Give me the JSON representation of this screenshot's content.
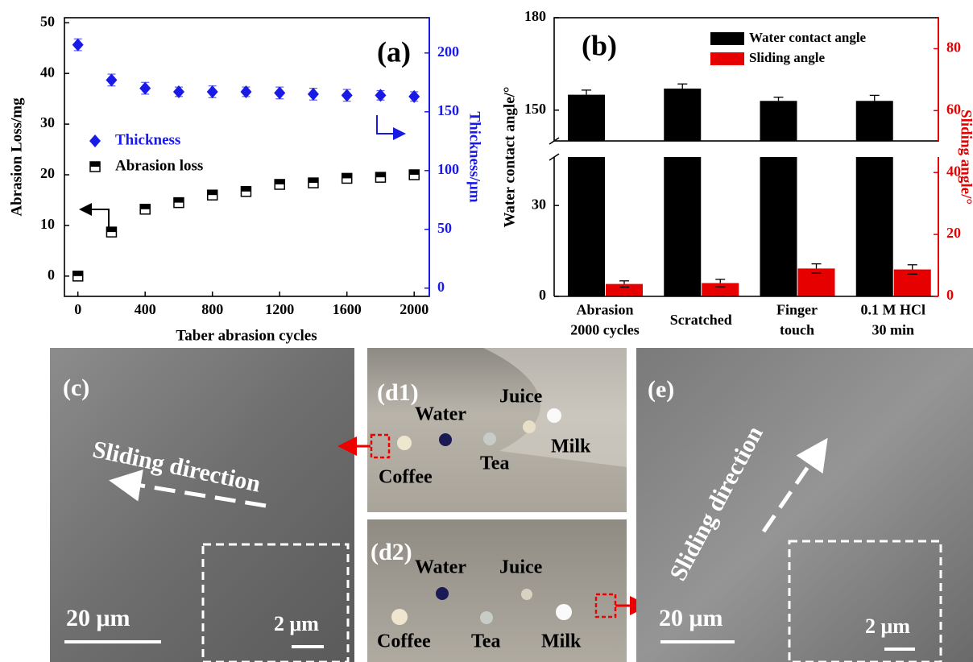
{
  "chart_data": [
    {
      "type": "scatter",
      "title": "(a)",
      "x": [
        0,
        200,
        400,
        600,
        800,
        1000,
        1200,
        1400,
        1600,
        1800,
        2000
      ],
      "series": [
        {
          "name": "Thickness",
          "color": "#1a1ae6",
          "marker": "diamond",
          "axis": "y2",
          "values": [
            207,
            177,
            170,
            167,
            167,
            167,
            166,
            165,
            164,
            164,
            163
          ],
          "errors": [
            5,
            5,
            5,
            4,
            5,
            4,
            5,
            5,
            5,
            4,
            4
          ]
        },
        {
          "name": "Abrasion loss",
          "color": "#000000",
          "marker": "half-square",
          "values": [
            0,
            8.7,
            13.2,
            14.5,
            16,
            16.7,
            18.1,
            18.4,
            19.3,
            19.5,
            20
          ],
          "errors": [
            0.3,
            0.4,
            0.4,
            0.4,
            0.4,
            0.4,
            0.4,
            0.4,
            0.4,
            0.4,
            0.4
          ]
        }
      ],
      "xlabel": "Taber abrasion cycles",
      "ylabel": "Abrasion Loss/mg",
      "y2label": "Thickness/μm",
      "xlim": [
        -80,
        2090
      ],
      "xticks": [
        0,
        400,
        800,
        1200,
        1600,
        2000
      ],
      "ylim": [
        -4,
        51
      ],
      "yticks": [
        0,
        10,
        20,
        30,
        40,
        50
      ],
      "y2lim": [
        -7,
        230
      ],
      "y2ticks": [
        0,
        50,
        100,
        150,
        200
      ],
      "y2color": "#1a1ae6"
    },
    {
      "type": "bar",
      "title": "(b)",
      "categories": [
        [
          "Abrasion",
          "2000 cycles"
        ],
        [
          "Scratched"
        ],
        [
          "Finger",
          "touch"
        ],
        [
          "0.1 M HCl",
          "30 min"
        ]
      ],
      "series": [
        {
          "name": "Water contact angle",
          "color": "#000000",
          "values": [
            155,
            157,
            153,
            153
          ],
          "errors": [
            1.5,
            1.5,
            1.2,
            1.8
          ]
        },
        {
          "name": "Sliding angle",
          "color": "#e60000",
          "axis": "y2",
          "values": [
            4,
            4.3,
            9,
            8.7
          ],
          "errors": [
            1,
            1.2,
            1.5,
            1.5
          ]
        }
      ],
      "ylabel": "Water contact angle/°",
      "y2label": "Sliding angle/°",
      "ylim": [
        0,
        180
      ],
      "ybreak": [
        46,
        140
      ],
      "yticks": [
        0,
        30,
        150,
        180
      ],
      "y2lim": [
        0,
        90
      ],
      "y2ticks": [
        0,
        20,
        40,
        60,
        80
      ],
      "y2color": "#e60000"
    }
  ],
  "panels": [
    {
      "label": "(c)",
      "text": "Sliding direction",
      "scale_bar": "20 μm",
      "inset_scale_bar": "2 μm"
    },
    {
      "label": "(d1)",
      "liquids": [
        "Water",
        "Juice",
        "Coffee",
        "Tea",
        "Milk"
      ]
    },
    {
      "label": "(d2)",
      "liquids": [
        "Water",
        "Juice",
        "Coffee",
        "Tea",
        "Milk"
      ]
    },
    {
      "label": "(e)",
      "text": "Sliding direction",
      "scale_bar": "20 μm",
      "inset_scale_bar": "2 μm"
    }
  ]
}
